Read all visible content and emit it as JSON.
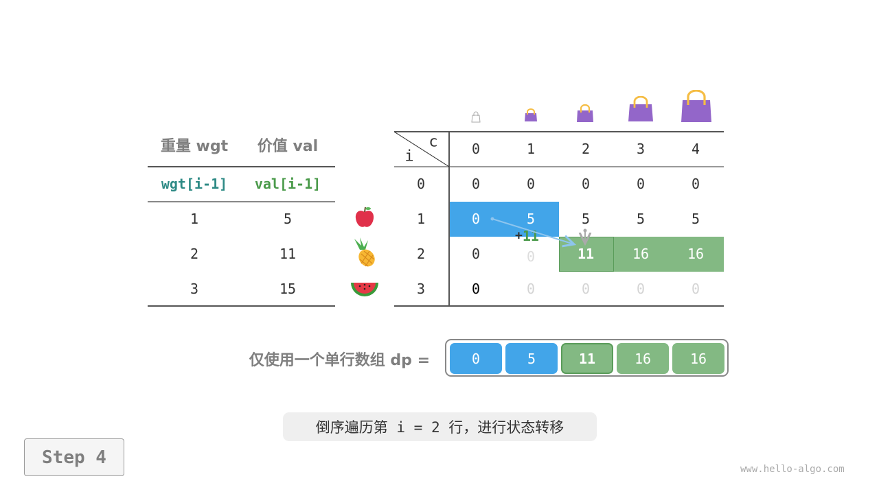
{
  "left_table": {
    "headers": [
      "重量 wgt",
      "价值 val"
    ],
    "subheaders": [
      "wgt[i-1]",
      "val[i-1]"
    ],
    "rows": [
      [
        "1",
        "5"
      ],
      [
        "2",
        "11"
      ],
      [
        "3",
        "15"
      ]
    ],
    "items": [
      "apple-icon",
      "pineapple-icon",
      "watermelon-icon"
    ]
  },
  "dp_table": {
    "corner": {
      "row_label": "i",
      "col_label": "c"
    },
    "capacities": [
      "0",
      "1",
      "2",
      "3",
      "4"
    ],
    "row_labels": [
      "0",
      "1",
      "2",
      "3"
    ],
    "rows": [
      [
        "0",
        "0",
        "0",
        "0",
        "0"
      ],
      [
        "0",
        "5",
        "5",
        "5",
        "5"
      ],
      [
        "0",
        "0",
        "11",
        "16",
        "16"
      ],
      [
        "0",
        "0",
        "0",
        "0",
        "0"
      ]
    ],
    "annotation": {
      "plus": "+",
      "value": "11"
    }
  },
  "dp_array": {
    "label": "仅使用一个单行数组 dp =",
    "values": [
      "0",
      "5",
      "11",
      "16",
      "16"
    ]
  },
  "caption": "倒序遍历第 i = 2 行，进行状态转移",
  "step": "Step 4",
  "watermark": "www.hello-algo.com",
  "colors": {
    "blue": "#42a5e9",
    "green": "#83b983",
    "green_border": "#5a9c5a",
    "purple": "#9366c9",
    "handle": "#f5bd44"
  }
}
